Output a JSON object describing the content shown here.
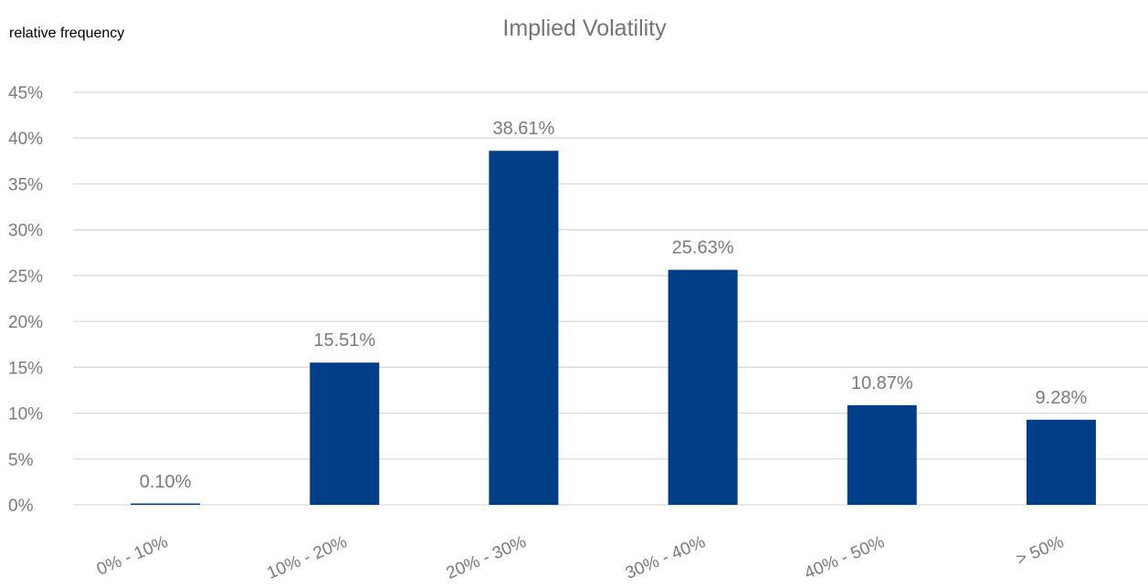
{
  "chart_data": {
    "type": "bar",
    "title": "Implied Volatility",
    "ylabel": "relative frequency",
    "xlabel": "",
    "categories": [
      "0% - 10%",
      "10% - 20%",
      "20% - 30%",
      "30% - 40%",
      "40% - 50%",
      "> 50%"
    ],
    "values": [
      0.1,
      15.51,
      38.61,
      25.63,
      10.87,
      9.28
    ],
    "data_labels": [
      "0.10%",
      "15.51%",
      "38.61%",
      "25.63%",
      "10.87%",
      "9.28%"
    ],
    "ylim": [
      0,
      45
    ],
    "yticks": [
      0,
      5,
      10,
      15,
      20,
      25,
      30,
      35,
      40,
      45
    ],
    "ytick_labels": [
      "0%",
      "5%",
      "10%",
      "15%",
      "20%",
      "25%",
      "30%",
      "35%",
      "40%",
      "45%"
    ],
    "grid": true,
    "legend": "none",
    "bar_color": "#003f87",
    "grid_color": "#d9d9d9",
    "text_color": "#7a7a7a"
  }
}
